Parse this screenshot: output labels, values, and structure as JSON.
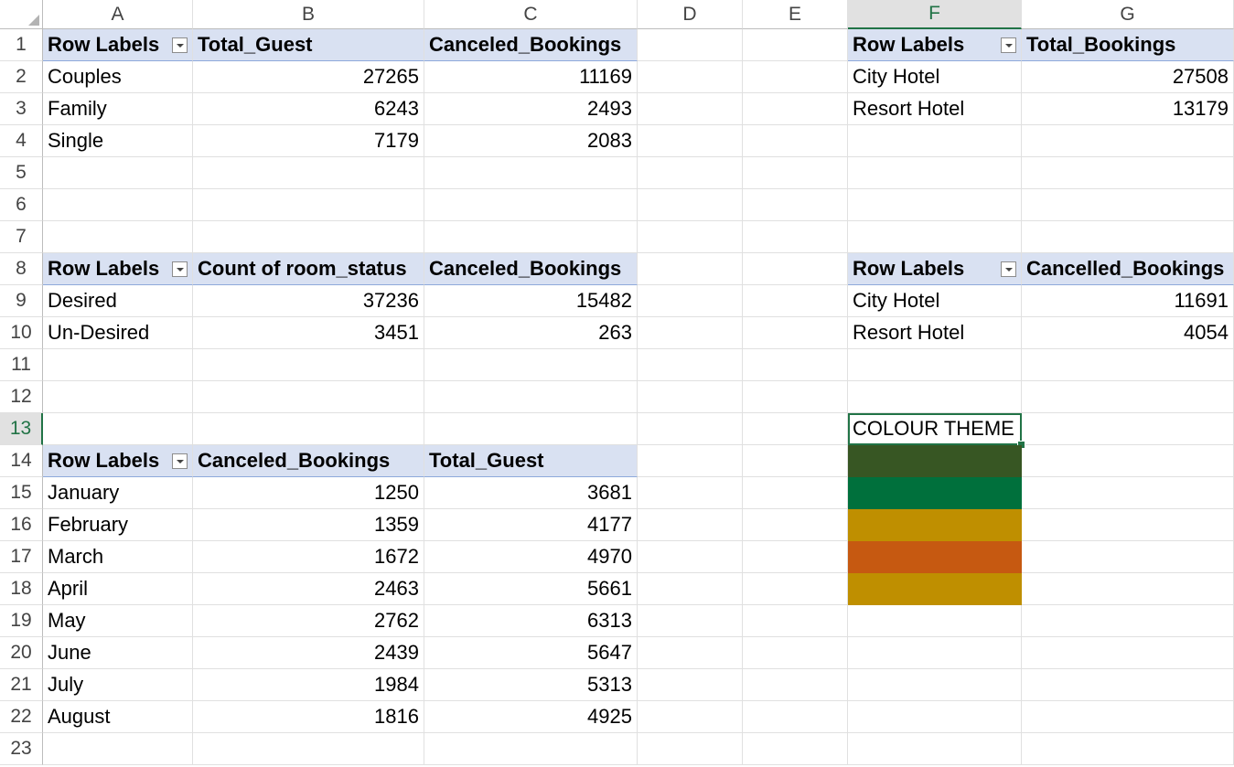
{
  "columns": [
    "A",
    "B",
    "C",
    "D",
    "E",
    "F",
    "G"
  ],
  "rows": [
    "1",
    "2",
    "3",
    "4",
    "5",
    "6",
    "7",
    "8",
    "9",
    "10",
    "11",
    "12",
    "13",
    "14",
    "15",
    "16",
    "17",
    "18",
    "19",
    "20",
    "21",
    "22",
    "23"
  ],
  "pivot1": {
    "headers": [
      "Row Labels",
      "Total_Guest",
      "Canceled_Bookings"
    ],
    "rows": [
      {
        "label": "Couples",
        "v1": "27265",
        "v2": "11169"
      },
      {
        "label": "Family",
        "v1": "6243",
        "v2": "2493"
      },
      {
        "label": "Single",
        "v1": "7179",
        "v2": "2083"
      }
    ]
  },
  "pivot2": {
    "headers": [
      "Row Labels",
      "Count of room_status",
      "Canceled_Bookings"
    ],
    "rows": [
      {
        "label": "Desired",
        "v1": "37236",
        "v2": "15482"
      },
      {
        "label": "Un-Desired",
        "v1": "3451",
        "v2": "263"
      }
    ]
  },
  "pivot3": {
    "headers": [
      "Row Labels",
      "Canceled_Bookings",
      "Total_Guest"
    ],
    "rows": [
      {
        "label": "January",
        "v1": "1250",
        "v2": "3681"
      },
      {
        "label": "February",
        "v1": "1359",
        "v2": "4177"
      },
      {
        "label": "March",
        "v1": "1672",
        "v2": "4970"
      },
      {
        "label": "April",
        "v1": "2463",
        "v2": "5661"
      },
      {
        "label": "May",
        "v1": "2762",
        "v2": "6313"
      },
      {
        "label": "June",
        "v1": "2439",
        "v2": "5647"
      },
      {
        "label": "July",
        "v1": "1984",
        "v2": "5313"
      },
      {
        "label": "August",
        "v1": "1816",
        "v2": "4925"
      }
    ]
  },
  "pivot4": {
    "headers": [
      "Row Labels",
      "Total_Bookings"
    ],
    "rows": [
      {
        "label": "City Hotel",
        "v1": "27508"
      },
      {
        "label": "Resort Hotel",
        "v1": "13179"
      }
    ]
  },
  "pivot5": {
    "headers": [
      "Row Labels",
      "Cancelled_Bookings"
    ],
    "rows": [
      {
        "label": "City Hotel",
        "v1": "11691"
      },
      {
        "label": "Resort Hotel",
        "v1": "4054"
      }
    ]
  },
  "colour_theme": {
    "label": "COLOUR THEME",
    "swatches": [
      "#375623",
      "#00703c",
      "#bf8f00",
      "#c65911",
      "#bf8f00"
    ]
  }
}
